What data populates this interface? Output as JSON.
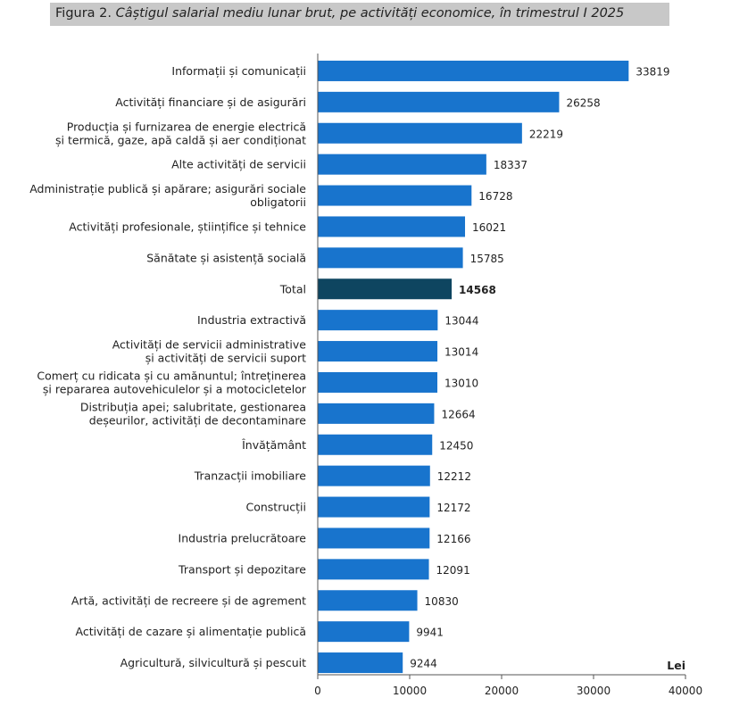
{
  "title": {
    "prefix": "Figura 2.",
    "main": "Câștigul salarial mediu lunar brut, pe activități economice, în trimestrul I 2025"
  },
  "colors": {
    "bar": "#1874cd",
    "highlight": "#0e4560",
    "axis": "#555555"
  },
  "chart_data": {
    "type": "bar",
    "orientation": "horizontal",
    "title": "Câștigul salarial mediu lunar brut, pe activități economice, în trimestrul I 2025",
    "unit_label": "Lei",
    "xlim": [
      0,
      40000
    ],
    "xticks": [
      "0",
      "10000",
      "20000",
      "30000",
      "40000"
    ],
    "grid": false,
    "categories": [
      [
        "Informații și comunicații"
      ],
      [
        "Activități financiare și de asigurări"
      ],
      [
        "Producția și furnizarea de energie electrică",
        "și termică, gaze, apă caldă și aer condiționat"
      ],
      [
        "Alte activități de servicii"
      ],
      [
        "Administrație publică și apărare; asigurări sociale",
        "obligatorii"
      ],
      [
        "Activități profesionale, științifice și tehnice"
      ],
      [
        "Sănătate și asistență socială"
      ],
      [
        "Total"
      ],
      [
        "Industria extractivă"
      ],
      [
        "Activități de servicii administrative",
        "și activități de servicii suport"
      ],
      [
        "Comerț cu ridicata și cu amănuntul; întreținerea",
        "și repararea autovehiculelor și a motocicletelor"
      ],
      [
        "Distribuția apei; salubritate, gestionarea",
        "deșeurilor, activități de decontaminare"
      ],
      [
        "Învățământ"
      ],
      [
        "Tranzacții imobiliare"
      ],
      [
        "Construcții"
      ],
      [
        "Industria prelucrătoare"
      ],
      [
        "Transport și depozitare"
      ],
      [
        "Artă, activități de recreere și de agrement"
      ],
      [
        "Activități de cazare și alimentație publică"
      ],
      [
        "Agricultură, silvicultură și pescuit"
      ]
    ],
    "values": [
      33819,
      26258,
      22219,
      18337,
      16728,
      16021,
      15785,
      14568,
      13044,
      13014,
      13010,
      12664,
      12450,
      12212,
      12172,
      12166,
      12091,
      10830,
      9941,
      9244
    ],
    "value_labels": [
      "33819",
      "26258",
      "22219",
      "18337",
      "16728",
      "16021",
      "15785",
      "14568",
      "13044",
      "13014",
      "13010",
      "12664",
      "12450",
      "12212",
      "12172",
      "12166",
      "12091",
      "10830",
      "9941",
      "9244"
    ],
    "highlight_category": "Total"
  }
}
